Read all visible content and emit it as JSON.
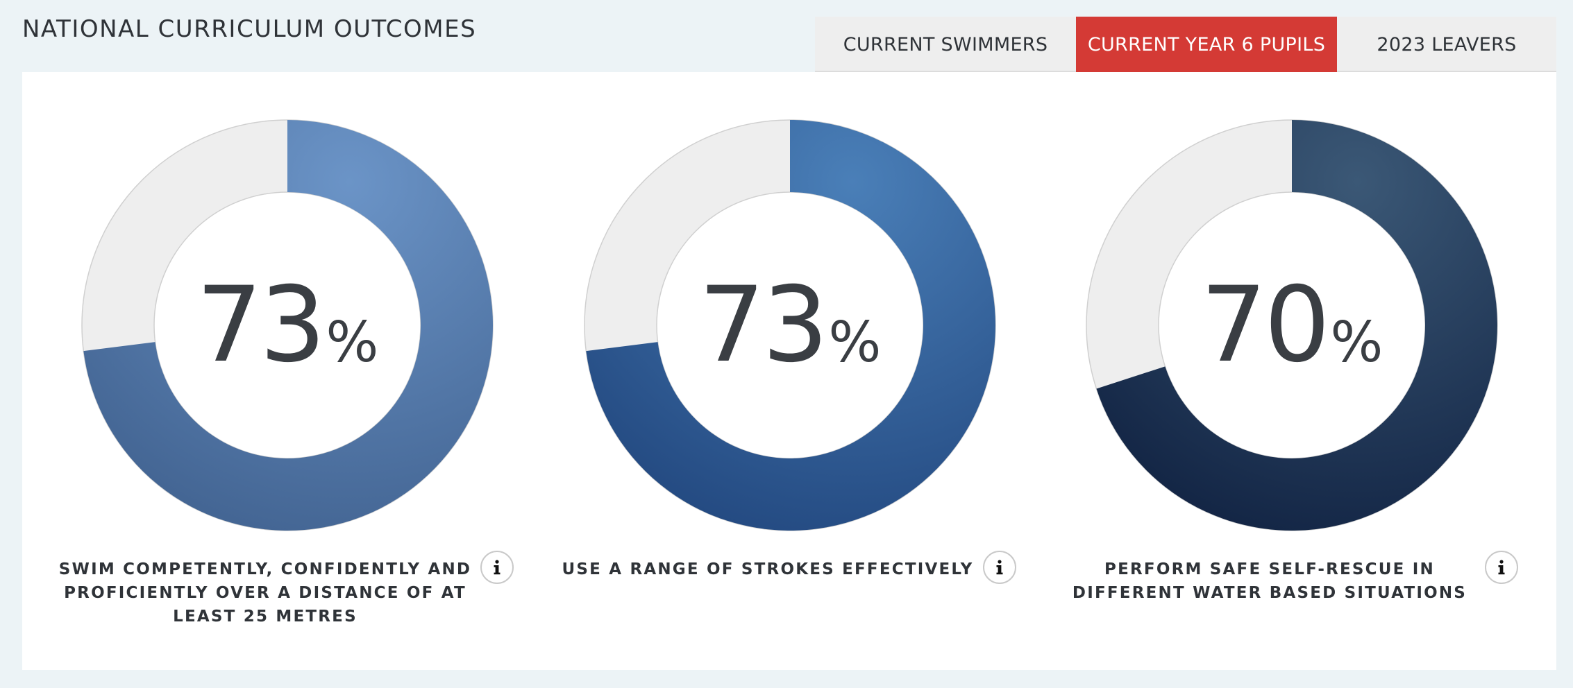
{
  "header": {
    "title": "NATIONAL CURRICULUM OUTCOMES"
  },
  "tabs": [
    {
      "label": "CURRENT SWIMMERS",
      "active": false
    },
    {
      "label": "CURRENT YEAR 6 PUPILS",
      "active": true
    },
    {
      "label": "2023 LEAVERS",
      "active": false
    }
  ],
  "colors": {
    "accent": "#d43a35",
    "track": "#eeeeee",
    "text": "#2f3338"
  },
  "outcomes": [
    {
      "value": "73",
      "percent_sign": "%",
      "label": "SWIM COMPETENTLY, CONFIDENTLY AND PROFICIENTLY OVER A DISTANCE OF AT LEAST 25 METRES",
      "info_icon": "info-icon",
      "gradient": [
        "#6b94c7",
        "#3a5a87"
      ]
    },
    {
      "value": "73",
      "percent_sign": "%",
      "label": "USE A RANGE OF STROKES EFFECTIVELY",
      "info_icon": "info-icon",
      "gradient": [
        "#4a7fb8",
        "#1b3e75"
      ]
    },
    {
      "value": "70",
      "percent_sign": "%",
      "label": "PERFORM SAFE SELF-RESCUE IN DIFFERENT WATER BASED SITUATIONS",
      "info_icon": "info-icon",
      "gradient": [
        "#3b5876",
        "#0a1a3a"
      ]
    }
  ]
}
